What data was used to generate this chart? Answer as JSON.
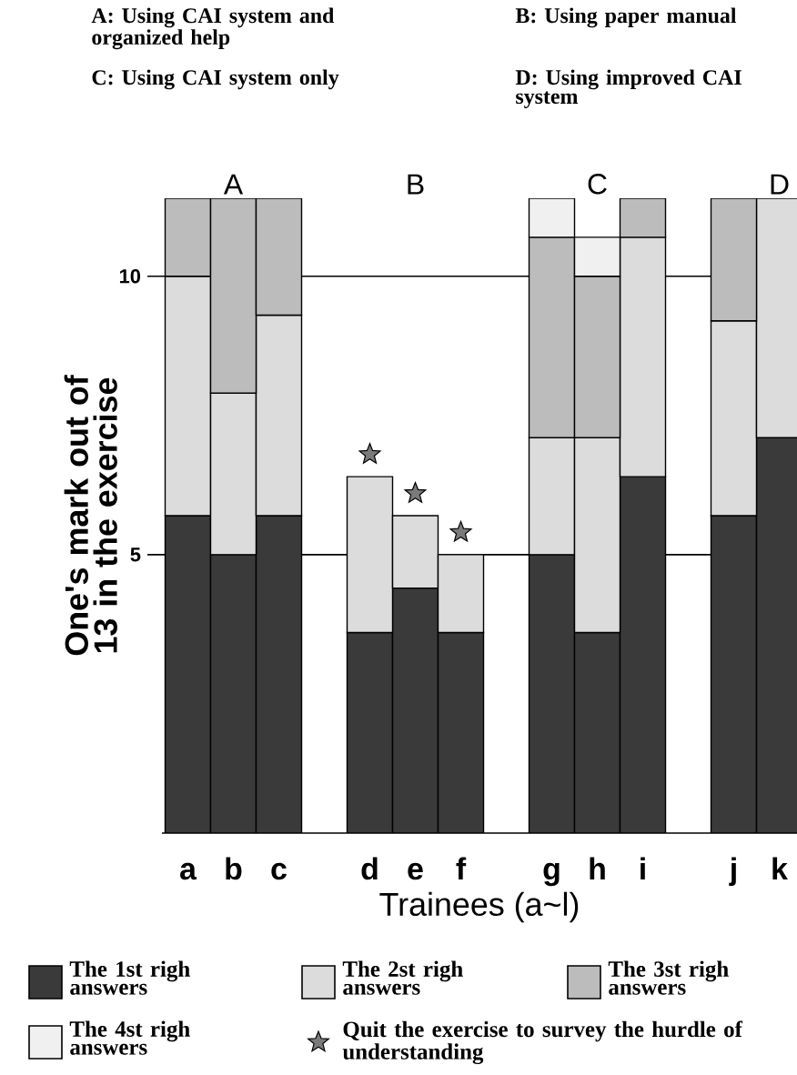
{
  "chart_data": {
    "type": "bar",
    "stacked": true,
    "xlabel": "Trainees (a~l)",
    "ylabel": "One's mark out of 13 in the exercise",
    "categories": [
      "a",
      "b",
      "c",
      null,
      "d",
      "e",
      "f",
      null,
      "g",
      "h",
      "i",
      null,
      "j",
      "k"
    ],
    "series": [
      {
        "name": "The 1st righ answers",
        "color": "#3a3a3a",
        "values": [
          5.7,
          5.0,
          5.7,
          null,
          3.6,
          4.4,
          3.6,
          null,
          5.0,
          3.6,
          6.4,
          null,
          5.7,
          7.1
        ]
      },
      {
        "name": "The 2st righ answers",
        "color": "#dcdcdc",
        "values": [
          4.3,
          2.9,
          3.6,
          null,
          2.8,
          1.3,
          1.4,
          null,
          2.1,
          3.5,
          4.3,
          null,
          3.5,
          4.3
        ]
      },
      {
        "name": "The 3st righ answers",
        "color": "#bcbcbc",
        "values": [
          1.4,
          3.5,
          2.1,
          null,
          null,
          null,
          null,
          null,
          3.6,
          2.9,
          0.7,
          null,
          2.2,
          null
        ]
      },
      {
        "name": "The 4st righ answers",
        "color": "#f0f0f0",
        "values": [
          null,
          null,
          null,
          null,
          null,
          null,
          null,
          null,
          0.7,
          0.7,
          null,
          null,
          null,
          null
        ]
      },
      {
        "name": "Quit the exercise to survey the hurdle of understanding",
        "type": "scatter",
        "marker": "star",
        "color": "#7a7a7a",
        "values": [
          null,
          null,
          null,
          null,
          6.8,
          6.1,
          5.4,
          null,
          null,
          null,
          null,
          null,
          null,
          null
        ]
      }
    ],
    "ylim": [
      0,
      11.4
    ],
    "yticks": [
      5,
      10
    ],
    "grid": "y",
    "legend": "bottom",
    "annotations": [
      "A",
      "B",
      "C",
      "D",
      "A: Using CAI system and organized help",
      "B: Using paper manual",
      "C: Using CAI system only",
      "D: Using improved CAI system"
    ]
  }
}
